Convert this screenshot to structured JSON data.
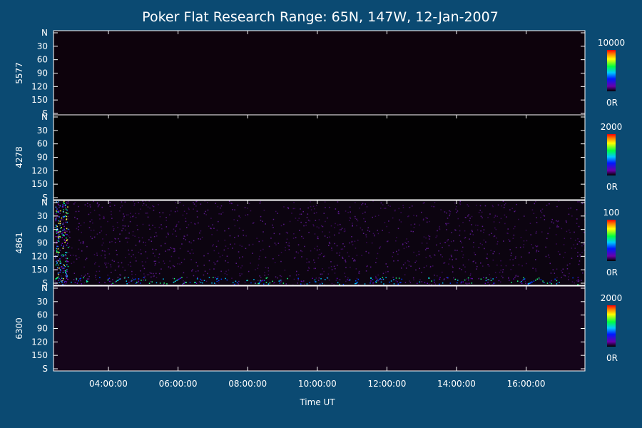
{
  "chart_data": {
    "type": "heatmap",
    "title": "Poker Flat Research Range: 65N, 147W, 12-Jan-2007",
    "xlabel": "Time UT",
    "x_ticks": [
      "04:00:00",
      "06:00:00",
      "08:00:00",
      "10:00:00",
      "12:00:00",
      "14:00:00",
      "16:00:00"
    ],
    "y_ticks": [
      "N",
      "30",
      "60",
      "90",
      "120",
      "150",
      "S"
    ],
    "panels": [
      {
        "name": "5577",
        "colorbar_max": "10000",
        "colorbar_min": "0R",
        "intensity": "very low"
      },
      {
        "name": "4278",
        "colorbar_max": "2000",
        "colorbar_min": "0R",
        "intensity": "near zero"
      },
      {
        "name": "4861",
        "colorbar_max": "100",
        "colorbar_min": "0R",
        "intensity": "noisy, brighter at start and southern edge"
      },
      {
        "name": "6300",
        "colorbar_max": "2000",
        "colorbar_min": "0R",
        "intensity": "low, faint purple"
      }
    ],
    "colors": {
      "background": "#0b4a72",
      "axis": "#ffffff",
      "plot": "#000000"
    }
  }
}
